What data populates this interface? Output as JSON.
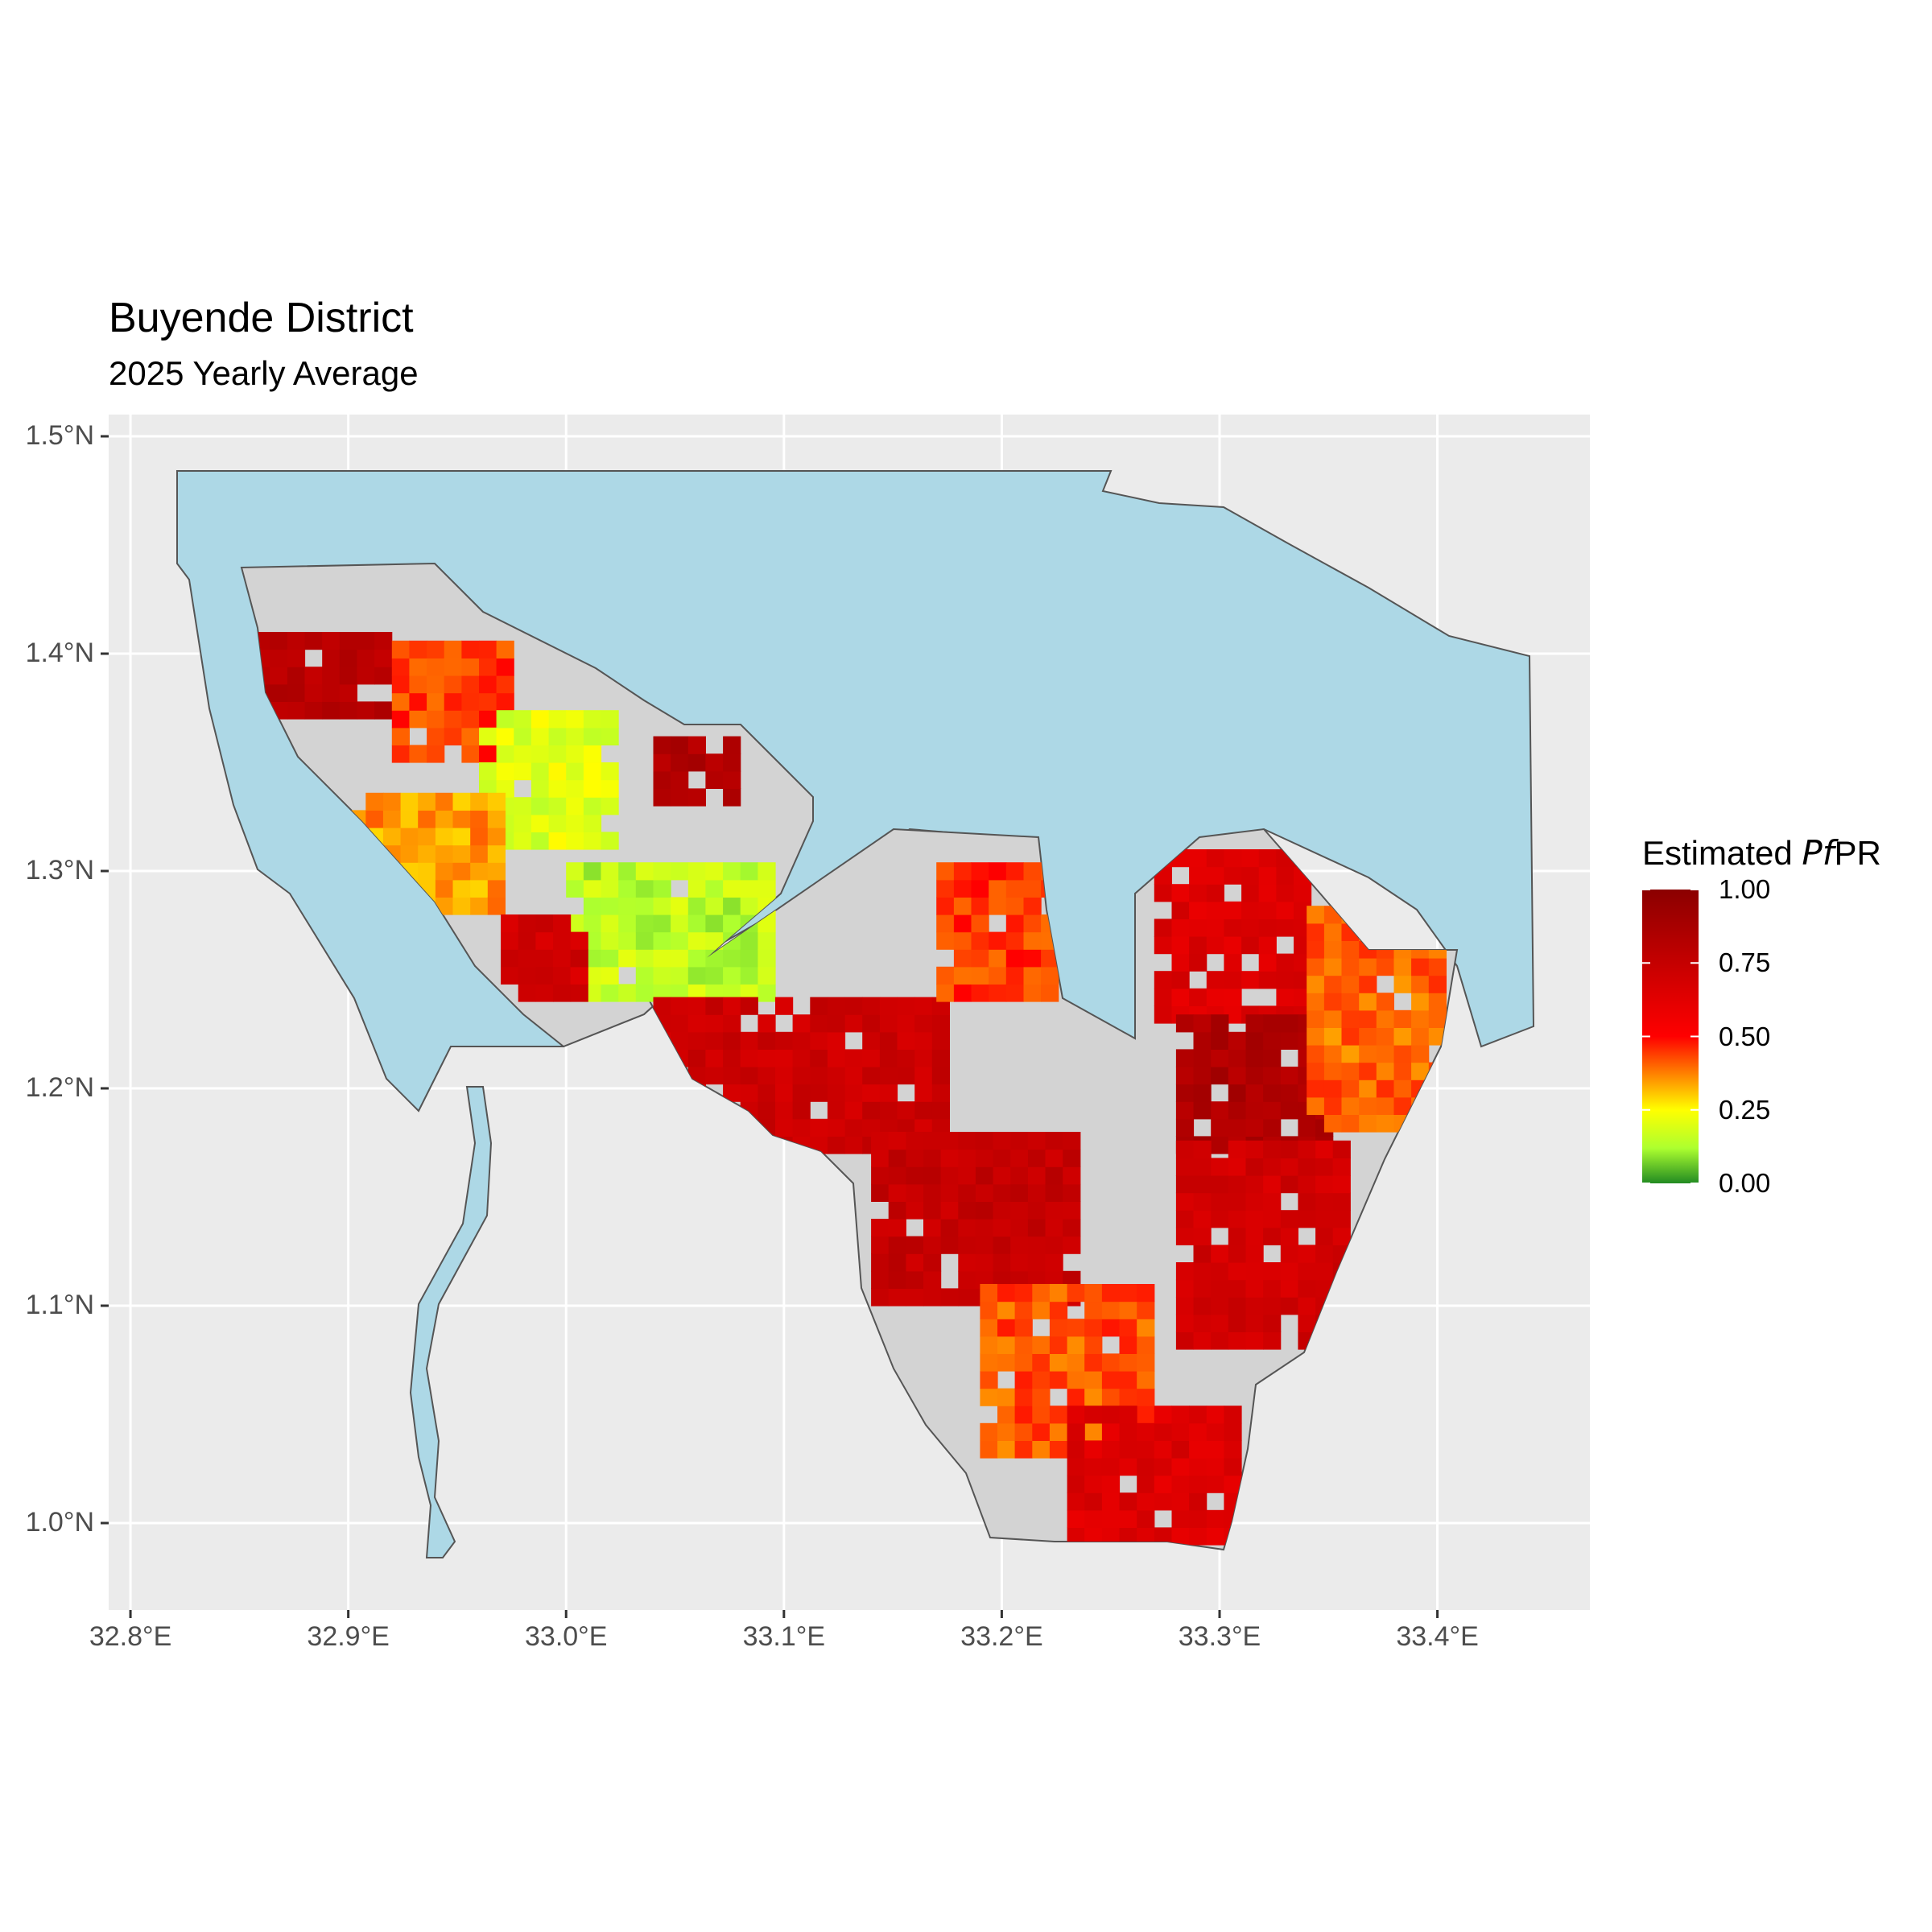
{
  "title": "Buyende District",
  "subtitle": "2025 Yearly Average",
  "legend": {
    "title_prefix": "Estimated ",
    "title_italic": "Pf",
    "title_suffix": "PR",
    "labels": [
      "1.00",
      "0.75",
      "0.50",
      "0.25",
      "0.00"
    ],
    "colors": [
      "#8b0000",
      "#ff0000",
      "#ffff00",
      "#228b22"
    ]
  },
  "axes": {
    "x_ticks": [
      "32.8°E",
      "32.9°E",
      "33.0°E",
      "33.1°E",
      "33.2°E",
      "33.3°E",
      "33.4°E"
    ],
    "y_ticks": [
      "1.5°N",
      "1.4°N",
      "1.3°N",
      "1.2°N",
      "1.1°N",
      "1.0°N"
    ],
    "xlim": [
      32.79,
      33.47
    ],
    "ylim": [
      0.96,
      1.51
    ],
    "grid": true
  },
  "colors": {
    "panel": "#ebebeb",
    "grid": "#ffffff",
    "water": "#add8e6",
    "land_nodata": "#d3d3d3",
    "outline": "#555555"
  },
  "chart_data": {
    "type": "heatmap",
    "variable": "Estimated PfPR",
    "scale": [
      0,
      1
    ],
    "regions": [
      {
        "lon": [
          32.84,
          32.92
        ],
        "lat": [
          1.37,
          1.41
        ],
        "value": 0.8
      },
      {
        "lon": [
          32.92,
          32.97
        ],
        "lat": [
          1.35,
          1.4
        ],
        "value": 0.45
      },
      {
        "lon": [
          32.96,
          33.02
        ],
        "lat": [
          1.31,
          1.37
        ],
        "value": 0.2
      },
      {
        "lon": [
          32.9,
          32.97
        ],
        "lat": [
          1.28,
          1.33
        ],
        "value": 0.35
      },
      {
        "lon": [
          33.04,
          33.08
        ],
        "lat": [
          1.33,
          1.36
        ],
        "value": 0.85
      },
      {
        "lon": [
          33.0,
          33.09
        ],
        "lat": [
          1.24,
          1.3
        ],
        "value": 0.15
      },
      {
        "lon": [
          32.97,
          33.01
        ],
        "lat": [
          1.24,
          1.28
        ],
        "value": 0.7
      },
      {
        "lon": [
          33.04,
          33.17
        ],
        "lat": [
          1.17,
          1.24
        ],
        "value": 0.72
      },
      {
        "lon": [
          33.17,
          33.22
        ],
        "lat": [
          1.24,
          1.3
        ],
        "value": 0.45
      },
      {
        "lon": [
          33.14,
          33.23
        ],
        "lat": [
          1.1,
          1.18
        ],
        "value": 0.75
      },
      {
        "lon": [
          33.19,
          33.27
        ],
        "lat": [
          1.03,
          1.11
        ],
        "value": 0.42
      },
      {
        "lon": [
          33.23,
          33.31
        ],
        "lat": [
          0.99,
          1.05
        ],
        "value": 0.65
      },
      {
        "lon": [
          33.27,
          33.34
        ],
        "lat": [
          1.23,
          1.31
        ],
        "value": 0.65
      },
      {
        "lon": [
          33.28,
          33.35
        ],
        "lat": [
          1.17,
          1.23
        ],
        "value": 0.85
      },
      {
        "lon": [
          33.34,
          33.4
        ],
        "lat": [
          1.18,
          1.28
        ],
        "value": 0.4
      },
      {
        "lon": [
          33.28,
          33.36
        ],
        "lat": [
          1.08,
          1.17
        ],
        "value": 0.7
      }
    ]
  }
}
